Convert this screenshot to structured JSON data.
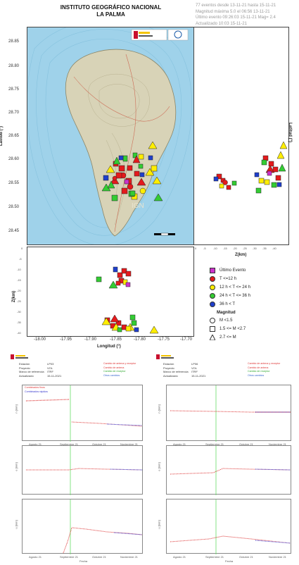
{
  "header": {
    "institute_line1": "INSTITUTO GEOGRÁFICO NACIONAL",
    "institute_line2": "LA PALMA",
    "info_lines": [
      "77 eventos desde 13-11-21 hasta 15-11-21",
      "Magnitud máxima 5.0 el 06:56 13-11-21",
      "Último evento 09:26:03 15-11-21 Mag= 2.4",
      "Actualizado 10:03 15-11-21"
    ]
  },
  "map": {
    "lat_ticks": [
      "28.85",
      "28.80",
      "28.75",
      "28.70",
      "28.65",
      "28.60",
      "28.55",
      "28.50",
      "28.45"
    ],
    "lat_label": "Latitud (°)",
    "lon_ticks": [
      "-18.00",
      "-17.95",
      "-17.90",
      "-17.85",
      "-17.80",
      "-17.75",
      "-17.70"
    ],
    "lon_label": "Longitud (°)",
    "z_ticks": [
      "0",
      "-5",
      "-10",
      "-15",
      "-20",
      "-25",
      "-30",
      "-35",
      "-40"
    ],
    "z_label_right": "Z(km)",
    "z_label_bottom": "Z(km)",
    "z_ticks_left": [
      "0",
      "-5",
      "-10",
      "-15",
      "-20",
      "-25",
      "-30",
      "-35",
      "-40"
    ],
    "watermark": "IGN"
  },
  "legend": {
    "items": [
      {
        "label": "Último Evento",
        "color": "#cc33cc",
        "shape": "square"
      },
      {
        "label": "T <=12 h",
        "color": "#e41a1c",
        "shape": "circle"
      },
      {
        "label": "12 h < T <= 24 h",
        "color": "#ffee00",
        "shape": "circle"
      },
      {
        "label": "24 h < T <= 36 h",
        "color": "#33cc33",
        "shape": "circle"
      },
      {
        "label": "36 h < T",
        "color": "#1f3fcc",
        "shape": "circle"
      }
    ],
    "magnitude_title": "Magnitud",
    "magnitudes": [
      {
        "label": "M <1.5",
        "shape": "circle"
      },
      {
        "label": "1.5 <= M <2.7",
        "shape": "square"
      },
      {
        "label": "2.7 <= M",
        "shape": "triangle"
      }
    ]
  },
  "gnss": [
    {
      "station_label": "Estación",
      "station": "LP03",
      "project_label": "Proyecto",
      "project": "VOL",
      "ref_label": "Marco de referencia",
      "ref": "ITRF",
      "updated_label": "Actualizado",
      "updated": "15-11-2021",
      "change_labels": [
        "Cambio de antena y receptor",
        "Cambio de antena",
        "Cambio de receptor",
        "Otros cambios"
      ],
      "series_labels": [
        "Combinados finos",
        "Combinados rápidos"
      ],
      "y_labels": [
        "n [mm]",
        "e [mm]",
        "u [mm]"
      ],
      "months": [
        "Agosto 21",
        "Septiembre 21",
        "Octubre 21",
        "Noviembre 21"
      ],
      "x_label": "Fecha"
    },
    {
      "station_label": "Estación",
      "station": "LP06",
      "project_label": "Proyecto",
      "project": "VOL",
      "ref_label": "Marco de referencia",
      "ref": "ITRF",
      "updated_label": "Actualizado",
      "updated": "15-11-2021",
      "change_labels": [
        "Cambio de antena y receptor",
        "Cambio de antena",
        "Cambio de receptor",
        "Otros cambios"
      ],
      "series_labels": [],
      "y_labels": [
        "n [mm]",
        "e [mm]",
        "u [mm]"
      ],
      "months": [
        "Agosto 21",
        "Septiembre 21",
        "Octubre 21",
        "Noviembre 21"
      ],
      "x_label": "Fecha"
    }
  ],
  "colors": {
    "sea": "#9fd2ea",
    "land": "#d8d3b7",
    "red": "#e41a1c",
    "yellow": "#ffee00",
    "green": "#33cc33",
    "blue": "#1f3fcc",
    "magenta": "#cc33cc",
    "change_line": "#66dd66"
  }
}
